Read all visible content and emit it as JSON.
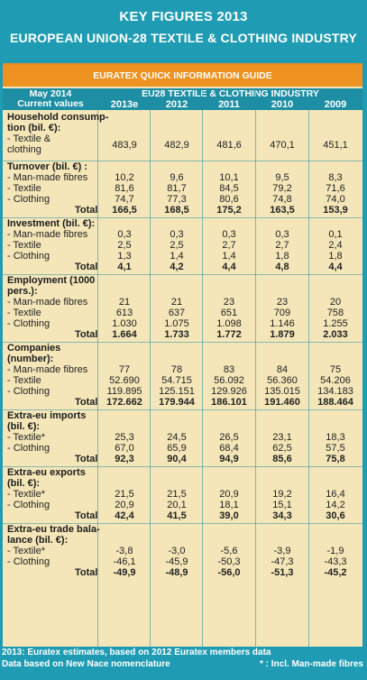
{
  "header": {
    "title1": "KEY FIGURES 2013",
    "title2": "EUROPEAN UNION-28 TEXTILE & CLOTHING INDUSTRY"
  },
  "guide_title": "EURATEX QUICK INFORMATION GUIDE",
  "colhead": {
    "left1": "May 2014",
    "left2": "Current values",
    "group": "EU28 TEXTILE & CLOTHING INDUSTRY",
    "years": [
      "2013e",
      "2012",
      "2011",
      "2010",
      "2009"
    ]
  },
  "sections": [
    {
      "title": [
        "Household consump-",
        "tion (bil. €):"
      ],
      "rows": [
        {
          "label": [
            "- Textile &",
            "  clothing"
          ],
          "values": [
            "483,9",
            "482,9",
            "481,6",
            "470,1",
            "451,1"
          ]
        }
      ]
    },
    {
      "title": [
        "Turnover  (bil. €) :"
      ],
      "rows": [
        {
          "label": [
            "- Man-made fibres"
          ],
          "values": [
            "10,2",
            "9,6",
            "10,1",
            "9,5",
            "8,3"
          ]
        },
        {
          "label": [
            "- Textile"
          ],
          "values": [
            "81,6",
            "81,7",
            "84,5",
            "79,2",
            "71,6"
          ]
        },
        {
          "label": [
            "- Clothing"
          ],
          "values": [
            "74,7",
            "77,3",
            "80,6",
            "74,8",
            "74,0"
          ]
        },
        {
          "label": [
            "Total"
          ],
          "total": true,
          "values": [
            "166,5",
            "168,5",
            "175,2",
            "163,5",
            "153,9"
          ]
        }
      ]
    },
    {
      "title": [
        "Investment (bil. €):"
      ],
      "rows": [
        {
          "label": [
            "- Man-made fibres"
          ],
          "values": [
            "0,3",
            "0,3",
            "0,3",
            "0,3",
            "0,1"
          ]
        },
        {
          "label": [
            "- Textile"
          ],
          "values": [
            "2,5",
            "2,5",
            "2,7",
            "2,7",
            "2,4"
          ]
        },
        {
          "label": [
            "- Clothing"
          ],
          "values": [
            "1,3",
            "1,4",
            "1,4",
            "1,8",
            "1,8"
          ]
        },
        {
          "label": [
            "Total"
          ],
          "total": true,
          "values": [
            "4,1",
            "4,2",
            "4,4",
            "4,8",
            "4,4"
          ]
        }
      ]
    },
    {
      "title": [
        "Employment (1000",
        "pers.):"
      ],
      "rows": [
        {
          "label": [
            "- Man-made fibres"
          ],
          "values": [
            "21",
            "21",
            "23",
            "23",
            "20"
          ]
        },
        {
          "label": [
            "- Textile"
          ],
          "values": [
            "613",
            "637",
            "651",
            "709",
            "758"
          ]
        },
        {
          "label": [
            "- Clothing"
          ],
          "values": [
            "1.030",
            "1.075",
            "1.098",
            "1.146",
            "1.255"
          ]
        },
        {
          "label": [
            "Total"
          ],
          "total": true,
          "values": [
            "1.664",
            "1.733",
            "1.772",
            "1.879",
            "2.033"
          ]
        }
      ]
    },
    {
      "title": [
        "Companies",
        "(number):"
      ],
      "rows": [
        {
          "label": [
            "- Man-made fibres"
          ],
          "values": [
            "77",
            "78",
            "83",
            "84",
            "75"
          ]
        },
        {
          "label": [
            "- Textile"
          ],
          "values": [
            "52.690",
            "54.715",
            "56.092",
            "56.360",
            "54.206"
          ]
        },
        {
          "label": [
            "- Clothing"
          ],
          "values": [
            "119.895",
            "125.151",
            "129.926",
            "135.015",
            "134.183"
          ]
        },
        {
          "label": [
            "Total"
          ],
          "total": true,
          "values": [
            "172.662",
            "179.944",
            "186.101",
            "191.460",
            "188.464"
          ]
        }
      ]
    },
    {
      "title": [
        "Extra-eu imports",
        "(bil. €):"
      ],
      "rows": [
        {
          "label": [
            "- Textile*"
          ],
          "values": [
            "25,3",
            "24,5",
            "26,5",
            "23,1",
            "18,3"
          ]
        },
        {
          "label": [
            "- Clothing"
          ],
          "values": [
            "67,0",
            "65,9",
            "68,4",
            "62,5",
            "57,5"
          ]
        },
        {
          "label": [
            "Total"
          ],
          "total": true,
          "values": [
            "92,3",
            "90,4",
            "94,9",
            "85,6",
            "75,8"
          ]
        }
      ]
    },
    {
      "title": [
        "Extra-eu exports",
        "(bil. €):"
      ],
      "rows": [
        {
          "label": [
            "- Textile*"
          ],
          "values": [
            "21,5",
            "21,5",
            "20,9",
            "19,2",
            "16,4"
          ]
        },
        {
          "label": [
            "- Clothing"
          ],
          "values": [
            "20,9",
            "20,1",
            "18,1",
            "15,1",
            "14,2"
          ]
        },
        {
          "label": [
            "Total"
          ],
          "total": true,
          "values": [
            "42,4",
            "41,5",
            "39,0",
            "34,3",
            "30,6"
          ]
        }
      ]
    },
    {
      "title": [
        "Extra-eu trade bala-",
        "lance (bil. €):"
      ],
      "rows": [
        {
          "label": [
            "- Textile*"
          ],
          "values": [
            "-3,8",
            "-3,0",
            "-5,6",
            "-3,9",
            "-1,9"
          ]
        },
        {
          "label": [
            "- Clothing"
          ],
          "values": [
            "-46,1",
            "-45,9",
            "-50,3",
            "-47,3",
            "-43,3"
          ]
        },
        {
          "label": [
            "Total"
          ],
          "total": true,
          "values": [
            "-49,9",
            "-48,9",
            "-56,0",
            "-51,3",
            "-45,2"
          ]
        }
      ]
    }
  ],
  "footer": {
    "note1": "2013: Euratex estimates, based on 2012 Euratex members data",
    "note2": "Data based on New Nace nomenclature",
    "note3": "* : Incl. Man-made fibres"
  },
  "colors": {
    "background": "#1f9cb3",
    "card": "#f4e6b8",
    "accent": "#ee9222",
    "header_row": "#1e8ea4"
  }
}
